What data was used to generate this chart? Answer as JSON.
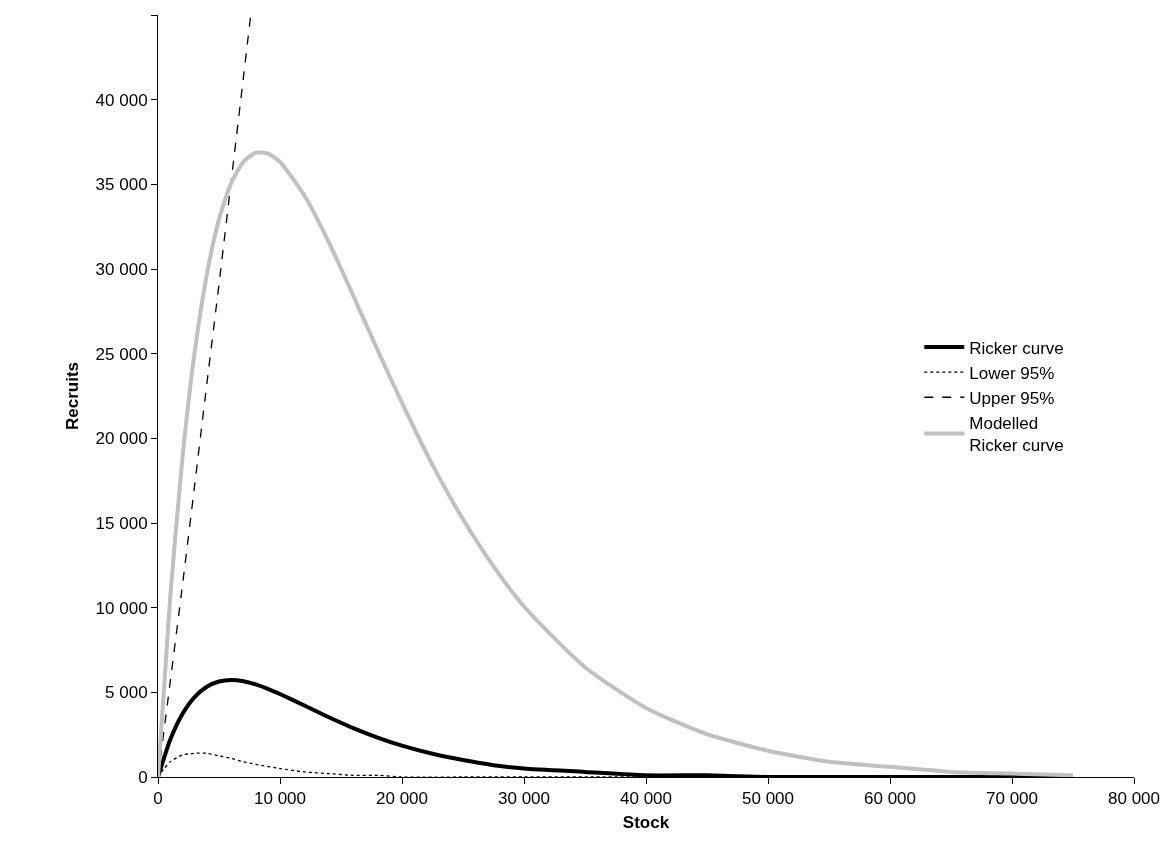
{
  "chart_data": {
    "type": "line",
    "xlabel": "Stock",
    "ylabel": "Recruits",
    "xlim": [
      0,
      80000
    ],
    "ylim": [
      0,
      45000
    ],
    "xticks": [
      0,
      {
        "value": 10000,
        "label": "10 000"
      },
      {
        "value": 20000,
        "label": "20 000"
      },
      {
        "value": 30000,
        "label": "30 000"
      },
      {
        "value": 40000,
        "label": "40 000"
      },
      {
        "value": 50000,
        "label": "50 000"
      },
      {
        "value": 60000,
        "label": "60 000"
      },
      {
        "value": 70000,
        "label": "70 000"
      },
      {
        "value": 80000,
        "label": "80 000"
      }
    ],
    "yticks": [
      0,
      {
        "value": 5000,
        "label": "5 000"
      },
      {
        "value": 10000,
        "label": "10 000"
      },
      {
        "value": 15000,
        "label": "15 000"
      },
      {
        "value": 20000,
        "label": "20 000"
      },
      {
        "value": 25000,
        "label": "25 000"
      },
      {
        "value": 30000,
        "label": "30 000"
      },
      {
        "value": 35000,
        "label": "35 000"
      },
      {
        "value": 40000,
        "label": "40 000"
      },
      {
        "value": 45000,
        "label": null
      }
    ],
    "legend": "right",
    "marker": "none",
    "series": [
      {
        "name": "Ricker curve",
        "color": "#000000",
        "line_style": "solid",
        "x": [
          0,
          1000,
          2000,
          3000,
          4000,
          5000,
          6000,
          7000,
          8000,
          9000,
          10000,
          12000,
          14000,
          16000,
          18000,
          20000,
          22500,
          25000,
          27500,
          30000,
          35000,
          40000,
          45000,
          50000,
          55000,
          60000,
          65000,
          70000,
          75000
        ],
        "values": [
          0,
          2200,
          3720,
          4720,
          5330,
          5640,
          5730,
          5660,
          5470,
          5210,
          4900,
          4220,
          3530,
          2890,
          2330,
          1850,
          1370,
          1000,
          700,
          500,
          300,
          100,
          100,
          0,
          0,
          0,
          0,
          0,
          0
        ]
      },
      {
        "name": "Lower 95%",
        "color": "#000000",
        "line_style": "dotted",
        "x": [
          0,
          500,
          1000,
          2000,
          3000,
          4000,
          5000,
          6000,
          7000,
          8000,
          10000,
          12000,
          14000,
          16000,
          18000,
          20000,
          25000,
          30000,
          35000,
          40000
        ],
        "values": [
          0,
          500,
          900,
          1300,
          1400,
          1400,
          1250,
          1100,
          900,
          750,
          500,
          300,
          200,
          100,
          100,
          0,
          0,
          0,
          0,
          0
        ]
      },
      {
        "name": "Upper 95%",
        "color": "#000000",
        "line_style": "dashed",
        "x": [
          0,
          1000,
          2000,
          3000,
          4000,
          5000,
          6000,
          7000,
          7600
        ],
        "values": [
          0,
          5600,
          11300,
          17200,
          23200,
          29100,
          35200,
          41300,
          45000
        ]
      },
      {
        "name": "Modelled\nRicker curve",
        "color": "#c0c0c0",
        "line_style": "solid",
        "x": [
          0,
          1000,
          2000,
          3000,
          4000,
          5000,
          6000,
          7000,
          8000,
          9000,
          10000,
          12000,
          14000,
          16000,
          18000,
          20000,
          22500,
          25000,
          27500,
          30000,
          35000,
          40000,
          45000,
          50000,
          55000,
          60000,
          65000,
          70000,
          75000
        ],
        "values": [
          0,
          10600,
          18820,
          25070,
          29660,
          32930,
          35080,
          36330,
          36870,
          36820,
          36320,
          34340,
          31580,
          28430,
          25210,
          22090,
          18430,
          15220,
          12440,
          10070,
          6480,
          4080,
          2530,
          1550,
          900,
          600,
          300,
          200,
          100
        ]
      }
    ]
  }
}
